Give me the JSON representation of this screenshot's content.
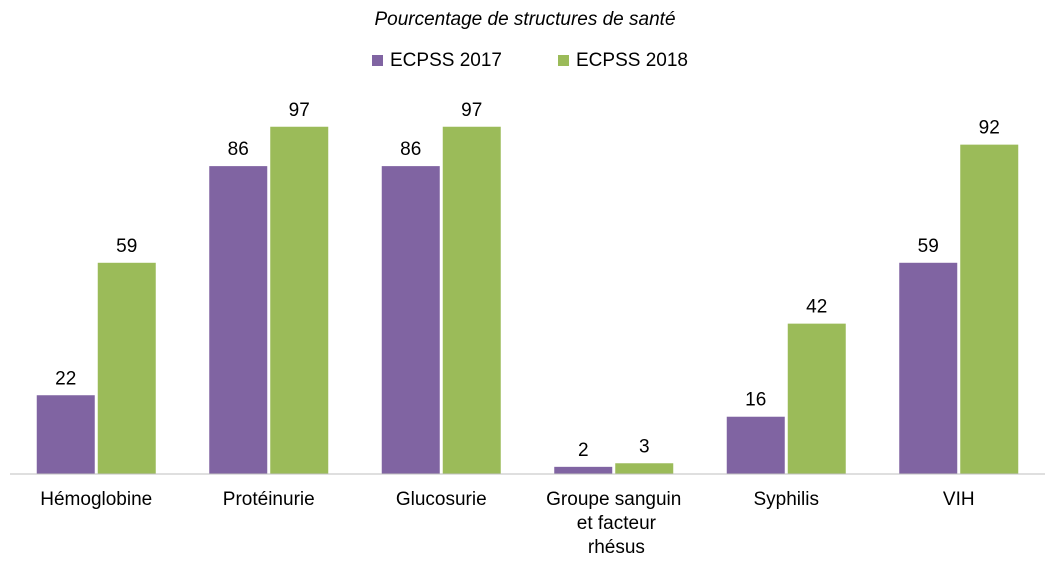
{
  "chart_data": {
    "type": "bar",
    "subtitle": "Pourcentage de structures de santé",
    "categories": [
      "Hémoglobine",
      "Protéinurie",
      "Glucosurie",
      "Groupe sanguin et facteur rhésus",
      "Syphilis",
      "VIH"
    ],
    "series": [
      {
        "name": "ECPSS 2017",
        "color": "#8064a2",
        "values": [
          22,
          86,
          86,
          2,
          16,
          59
        ]
      },
      {
        "name": "ECPSS 2018",
        "color": "#9bbb59",
        "values": [
          59,
          97,
          97,
          3,
          42,
          92
        ]
      }
    ],
    "ylim": [
      0,
      100
    ],
    "legend": "top"
  }
}
